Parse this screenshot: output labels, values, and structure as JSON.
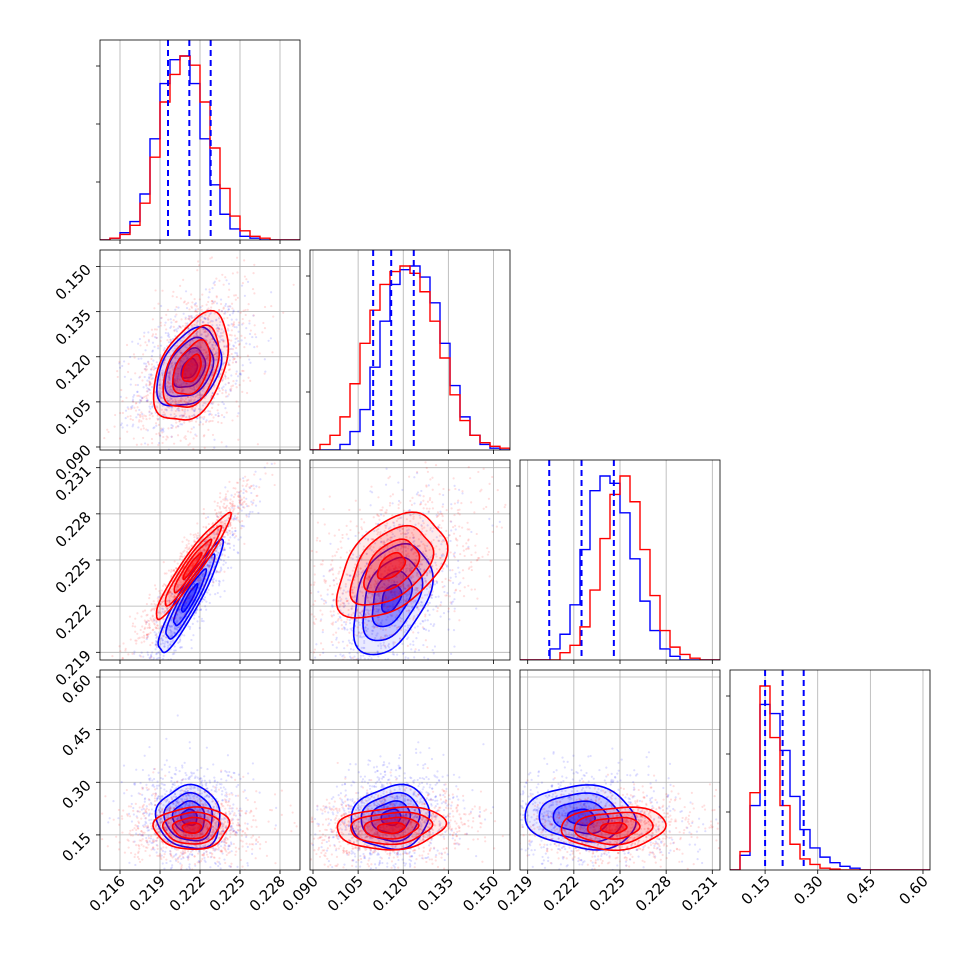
{
  "chart_data": {
    "type": "corner",
    "title": "",
    "parameters": [
      {
        "ticks": [
          0.216,
          0.219,
          0.222,
          0.225,
          0.228
        ],
        "range": [
          0.2145,
          0.2295
        ],
        "quantiles": [
          0.2196,
          0.2212,
          0.2228
        ]
      },
      {
        "ticks": [
          0.09,
          0.105,
          0.12,
          0.135,
          0.15
        ],
        "range": [
          0.089,
          0.1555
        ],
        "quantiles": [
          0.11,
          0.116,
          0.1235
        ]
      },
      {
        "ticks": [
          0.219,
          0.222,
          0.225,
          0.228,
          0.231
        ],
        "range": [
          0.2185,
          0.2315
        ],
        "quantiles": [
          0.2204,
          0.2225,
          0.2246
        ]
      },
      {
        "ticks": [
          0.15,
          0.3,
          0.45,
          0.6
        ],
        "range": [
          0.05,
          0.62
        ],
        "quantiles": [
          0.15,
          0.2,
          0.26
        ]
      }
    ],
    "tick_labels": [
      [
        "0.216",
        "0.219",
        "0.222",
        "0.225",
        "0.228"
      ],
      [
        "0.090",
        "0.105",
        "0.120",
        "0.135",
        "0.150"
      ],
      [
        "0.219",
        "0.222",
        "0.225",
        "0.228",
        "0.231"
      ],
      [
        "0.15",
        "0.30",
        "0.45",
        "0.60"
      ]
    ],
    "series": [
      {
        "color": "#0000ff",
        "means": [
          0.2212,
          0.116,
          0.2225,
          0.2
        ],
        "sds": [
          0.0012,
          0.0065,
          0.0018,
          0.045
        ],
        "correlations": {
          "1-0": 0.35,
          "2-0": 0.92,
          "2-1": 0.4,
          "3-0": -0.05,
          "3-1": 0.1,
          "3-2": -0.1
        },
        "histograms": [
          [
            0,
            0.01,
            0.04,
            0.1,
            0.25,
            0.55,
            0.85,
            0.98,
            1.0,
            0.85,
            0.55,
            0.3,
            0.14,
            0.06,
            0.02,
            0.01,
            0,
            0,
            0,
            0
          ],
          [
            0,
            0,
            0,
            0.03,
            0.1,
            0.22,
            0.45,
            0.7,
            0.9,
            0.98,
            1.0,
            0.94,
            0.8,
            0.58,
            0.35,
            0.18,
            0.08,
            0.03,
            0.01,
            0
          ],
          [
            0,
            0,
            0,
            0.06,
            0.14,
            0.3,
            0.6,
            0.92,
            1.0,
            0.96,
            0.8,
            0.55,
            0.32,
            0.16,
            0.06,
            0.02,
            0,
            0,
            0,
            0
          ],
          [
            0,
            0.08,
            0.35,
            0.9,
            0.85,
            0.65,
            0.4,
            0.22,
            0.12,
            0.07,
            0.04,
            0.02,
            0.01,
            0,
            0,
            0,
            0,
            0,
            0,
            0
          ]
        ]
      },
      {
        "color": "#ff0000",
        "means": [
          0.2214,
          0.116,
          0.2246,
          0.17
        ],
        "sds": [
          0.0014,
          0.009,
          0.0017,
          0.03
        ],
        "correlations": {
          "1-0": 0.45,
          "2-0": 0.95,
          "2-1": 0.45,
          "3-0": 0.05,
          "3-1": 0.15,
          "3-2": 0.1
        },
        "histograms": [
          [
            0,
            0.01,
            0.03,
            0.08,
            0.2,
            0.45,
            0.75,
            0.9,
            1.0,
            0.95,
            0.75,
            0.5,
            0.28,
            0.13,
            0.05,
            0.02,
            0.01,
            0,
            0,
            0
          ],
          [
            0,
            0.03,
            0.08,
            0.18,
            0.36,
            0.58,
            0.76,
            0.9,
            0.97,
            1.0,
            0.96,
            0.86,
            0.7,
            0.5,
            0.3,
            0.16,
            0.08,
            0.04,
            0.02,
            0.01
          ],
          [
            0,
            0,
            0,
            0,
            0.04,
            0.08,
            0.18,
            0.38,
            0.66,
            0.9,
            1.0,
            0.86,
            0.6,
            0.35,
            0.16,
            0.07,
            0.03,
            0.01,
            0,
            0
          ],
          [
            0,
            0.1,
            0.42,
            1.0,
            0.72,
            0.35,
            0.14,
            0.06,
            0.03,
            0.01,
            0.005,
            0,
            0,
            0,
            0,
            0,
            0,
            0,
            0,
            0
          ]
        ]
      }
    ],
    "contour_levels_sigma": [
      0.5,
      1.0,
      1.5,
      2.0
    ],
    "grid": true,
    "scatter": true
  }
}
